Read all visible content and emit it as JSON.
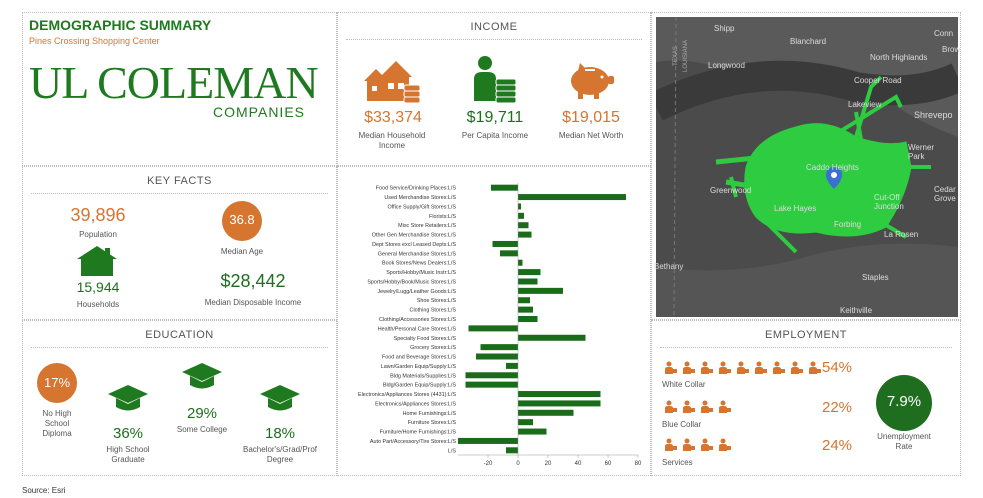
{
  "header": {
    "title": "DEMOGRAPHIC SUMMARY",
    "subtitle": "Pines Crossing Shopping Center",
    "logo_main": "UL COLEMAN",
    "logo_sub": "COMPANIES"
  },
  "income": {
    "title": "INCOME",
    "items": [
      {
        "value": "$33,374",
        "label": "Median Household Income",
        "icon": "house-coins-icon"
      },
      {
        "value": "$19,711",
        "label": "Per Capita Income",
        "icon": "person-coins-icon"
      },
      {
        "value": "$19,015",
        "label": "Median Net Worth",
        "icon": "piggy-bank-icon"
      }
    ]
  },
  "key_facts": {
    "title": "KEY FACTS",
    "population_value": "39,896",
    "population_label": "Population",
    "median_age_value": "36.8",
    "median_age_label": "Median Age",
    "households_value": "15,944",
    "households_label": "Households",
    "disposable_value": "$28,442",
    "disposable_label": "Median Disposable Income"
  },
  "education": {
    "title": "EDUCATION",
    "items": [
      {
        "value": "17%",
        "label": "No High School Diploma"
      },
      {
        "value": "36%",
        "label": "High School Graduate"
      },
      {
        "value": "29%",
        "label": "Some College"
      },
      {
        "value": "18%",
        "label": "Bachelor's/Grad/Prof Degree"
      }
    ]
  },
  "employment": {
    "title": "EMPLOYMENT",
    "rows": [
      {
        "label": "White Collar",
        "value": "54%",
        "icons": 9
      },
      {
        "label": "Blue Collar",
        "value": "22%",
        "icons": 4
      },
      {
        "label": "Services",
        "value": "24%",
        "icons": 4
      }
    ],
    "unemployment_value": "7.9%",
    "unemployment_label": "Unemployment Rate"
  },
  "map": {
    "labels": [
      "Shipp",
      "Blanchard",
      "Conn",
      "Brow",
      "North Highlands",
      "Longwood",
      "Cooper Road",
      "Lakeview",
      "Shrevepo",
      "TEXAS",
      "LOUISIANA",
      "Werner Park",
      "Cedar Grove",
      "Greenwood",
      "Caddo Heights",
      "Lake Hayes",
      "Cut-Off Junction",
      "Forbing",
      "La Rosen",
      "Bethany",
      "Staples",
      "Keithville"
    ],
    "land_color": "#3a3a3a",
    "area_color": "#2ecc40"
  },
  "source": "Source: Esri",
  "chart_data": {
    "type": "bar",
    "orientation": "horizontal",
    "categories": [
      "Food Service/Drinking Places:L/S",
      "Used Merchandise Stores:L/S",
      "Office Supply/Gift Stores:L/S",
      "Florists:L/S",
      "Misc Store Retailers:L/S",
      "Other Gen Merchandise Stores:L/S",
      "Dept Stores excl Leased Depts:L/S",
      "General Merchandise Stores:L/S",
      "Book Stores/News Dealers:L/S",
      "Sports/Hobby/Music Instr:L/S",
      "Sports/Hobby/Book/Music Stores:L/S",
      "Jewelry/Lugg/Leather Goods:L/S",
      "Shoe Stores:L/S",
      "Clothing Stores:L/S",
      "Clothing/Accessories Stores:L/S",
      "Health/Personal Care Stores:L/S",
      "Specialty Food Stores:L/S",
      "Grocery Stores:L/S",
      "Food and Beverage Stores:L/S",
      "Lawn/Garden Equip/Supply:L/S",
      "Bldg Materials/Supplies:L/S",
      "Bldg/Garden Equip/Supply:L/S",
      "Electronics/Appliances Stores (4431):L/S",
      "Electronics/Appliances Stores:L/S",
      "Home Furnishings:L/S",
      "Furniture Stores:L/S",
      "Furniture/Home Furnishings:L/S",
      "Auto Part/Accessory/Tire Stores:L/S",
      "L/S"
    ],
    "values": [
      -18,
      72,
      2,
      4,
      7,
      9,
      -17,
      -12,
      3,
      15,
      13,
      30,
      8,
      10,
      13,
      -33,
      45,
      -25,
      -28,
      -8,
      -35,
      -35,
      55,
      55,
      37,
      10,
      19,
      -40,
      -8
    ],
    "xlim": [
      -40,
      80
    ],
    "xticks": [
      -20,
      0,
      20,
      40,
      60,
      80
    ],
    "bar_color": "#1a6b1a"
  }
}
